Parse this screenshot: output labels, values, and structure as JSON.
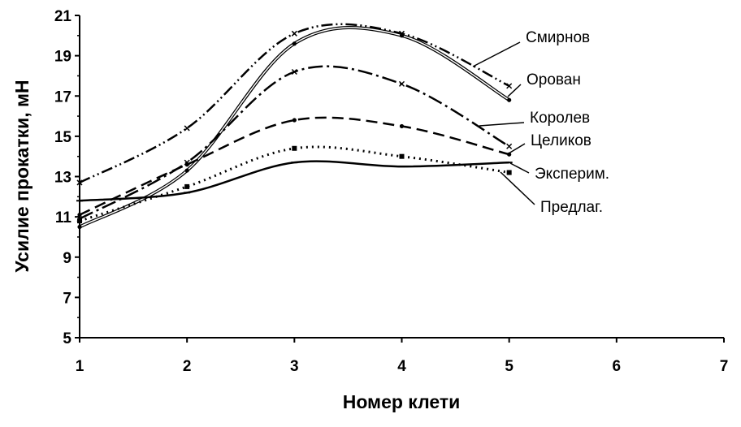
{
  "chart_data": {
    "type": "line",
    "title": "",
    "xlabel": "Номер клети",
    "ylabel": "Усилие прокатки, мН",
    "xlim": [
      1,
      7
    ],
    "ylim": [
      5,
      21
    ],
    "xticks": [
      "1",
      "2",
      "3",
      "4",
      "5",
      "6",
      "7"
    ],
    "yticks": [
      "5",
      "7",
      "9",
      "11",
      "13",
      "15",
      "17",
      "19",
      "21"
    ],
    "grid": false,
    "legend": "direct labels at right",
    "x": [
      1,
      2,
      3,
      4,
      5
    ],
    "series": [
      {
        "name": "Смирнов",
        "values": [
          12.7,
          15.4,
          20.1,
          20.1,
          17.5
        ]
      },
      {
        "name": "Орован",
        "values": [
          10.5,
          13.3,
          19.6,
          20.0,
          16.8
        ]
      },
      {
        "name": "Королев",
        "values": [
          10.9,
          13.7,
          18.2,
          17.6,
          14.5
        ]
      },
      {
        "name": "Целиков",
        "values": [
          11.1,
          13.6,
          15.8,
          15.5,
          14.1
        ]
      },
      {
        "name": "Эксперим.",
        "values": [
          10.8,
          12.5,
          14.4,
          14.0,
          13.2
        ]
      },
      {
        "name": "Предлаг.",
        "values": [
          11.8,
          12.2,
          13.7,
          13.5,
          13.7
        ]
      }
    ]
  }
}
